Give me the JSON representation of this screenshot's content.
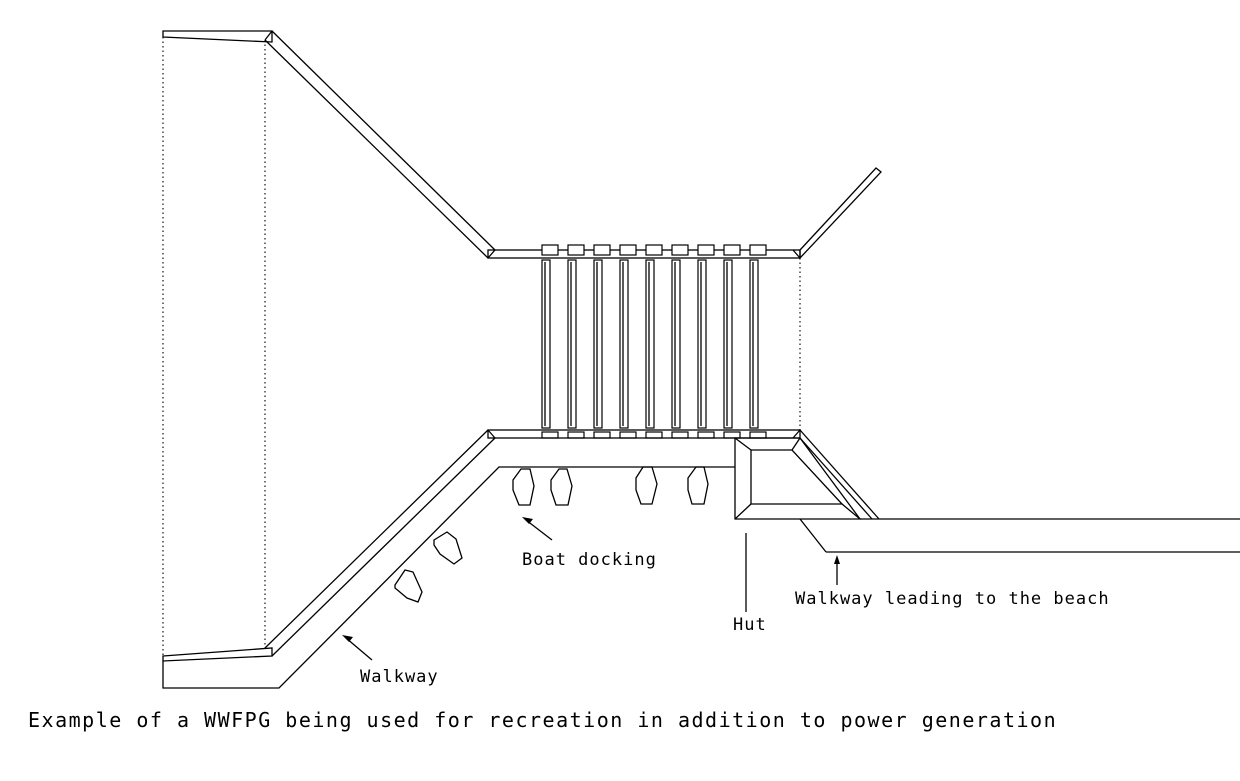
{
  "labels": {
    "boat_docking": "Boat docking",
    "walkway": "Walkway",
    "hut": "Hut",
    "walkway_beach": "Walkway leading to the beach"
  },
  "caption": "Example of a WWFPG being used for recreation in addition to power generation",
  "generator": {
    "blade_count": 9
  },
  "boats": {
    "count": 6
  }
}
